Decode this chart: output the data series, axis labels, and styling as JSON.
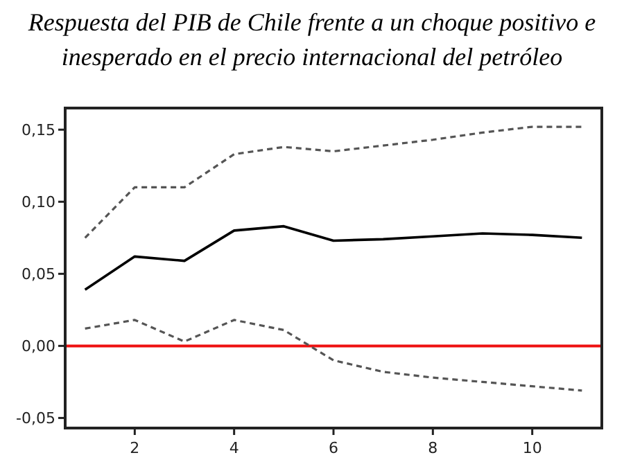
{
  "chart_data": {
    "type": "line",
    "title": "Respuesta del PIB de Chile frente a un choque positivo e inesperado en el precio internacional del petróleo",
    "x": [
      1,
      2,
      3,
      4,
      5,
      6,
      7,
      8,
      9,
      10,
      11
    ],
    "series": [
      {
        "color": "#000000",
        "line_style": "solid",
        "values": [
          0.039,
          0.062,
          0.059,
          0.08,
          0.083,
          0.073,
          0.074,
          0.076,
          0.078,
          0.077,
          0.075
        ]
      },
      {
        "color": "#555555",
        "line_style": "dashed",
        "values": [
          0.075,
          0.11,
          0.11,
          0.133,
          0.138,
          0.135,
          0.139,
          0.143,
          0.148,
          0.152,
          0.152
        ]
      },
      {
        "color": "#555555",
        "line_style": "dashed",
        "values": [
          0.012,
          0.018,
          0.003,
          0.018,
          0.011,
          -0.01,
          -0.018,
          -0.022,
          -0.025,
          -0.028,
          -0.031
        ]
      }
    ],
    "xlim": [
      0.6,
      11.4
    ],
    "xticks": [
      2,
      4,
      6,
      8,
      10
    ],
    "ylim": [
      -0.057,
      0.165
    ],
    "yticks": [
      {
        "value": -0.05,
        "label": "-0,05"
      },
      {
        "value": 0,
        "label": "0,00"
      },
      {
        "value": 0.05,
        "label": "0,05"
      },
      {
        "value": 0.1,
        "label": "0,10"
      },
      {
        "value": 0.15,
        "label": "0,15"
      }
    ],
    "ref_lines": [
      {
        "axis": "y",
        "value": 0,
        "color": "#ee1111"
      }
    ]
  }
}
